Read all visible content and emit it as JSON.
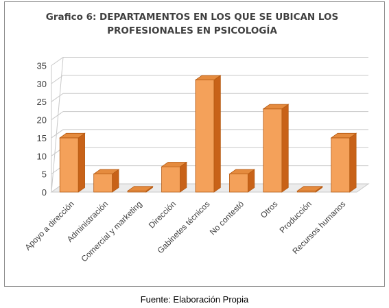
{
  "chart_data": {
    "type": "bar",
    "title_lines": [
      "Grafico 6: DEPARTAMENTOS EN LOS QUE SE UBICAN LOS",
      "PROFESIONALES EN PSICOLOGÍA"
    ],
    "categories": [
      "Apoyo a dirección",
      "Administración",
      "Comercial y marketing",
      "Dirección",
      "Gabinetes técnicos",
      "No contestó",
      "Otros",
      "Producción",
      "Recursos humanos"
    ],
    "values": [
      15,
      5,
      0.3,
      7,
      31,
      5,
      23,
      0.3,
      15
    ],
    "yticks": [
      "0",
      "5",
      "10",
      "15",
      "20",
      "25",
      "30",
      "35"
    ],
    "ylim": [
      0,
      35
    ],
    "grid": true,
    "legend": "none",
    "colors": {
      "bar_front": "#f4a15a",
      "bar_side": "#c86218",
      "bar_top": "#e58b3e",
      "bar_edge": "#b55a12",
      "grid": "#c8c8c8",
      "text": "#404040"
    }
  },
  "caption": "Fuente: Elaboración Propia"
}
